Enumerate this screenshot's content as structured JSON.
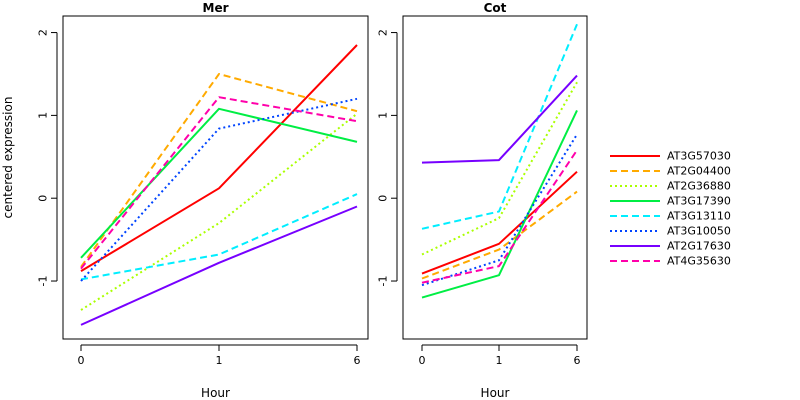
{
  "chart_data": [
    {
      "type": "line",
      "title": "Mer",
      "xlabel": "Hour",
      "ylabel": "centered expression",
      "categories": [
        "0",
        "1",
        "6"
      ],
      "ylim": [
        -1.7,
        2.2
      ],
      "yticks": [
        "-1",
        "0",
        "1",
        "2"
      ],
      "yticks_values": [
        -1,
        0,
        1,
        2
      ],
      "grid": false,
      "series": [
        {
          "name": "AT3G57030",
          "color": "#ff0000",
          "dash": "solid",
          "values": [
            -0.88,
            0.12,
            1.85
          ]
        },
        {
          "name": "AT2G04400",
          "color": "#ffaa00",
          "dash": "dashed",
          "values": [
            -0.83,
            1.5,
            1.05
          ]
        },
        {
          "name": "AT2G36880",
          "color": "#aaff00",
          "dash": "dotted",
          "values": [
            -1.35,
            -0.3,
            1.02
          ]
        },
        {
          "name": "AT3G17390",
          "color": "#00ee44",
          "dash": "solid",
          "values": [
            -0.72,
            1.08,
            0.68
          ]
        },
        {
          "name": "AT3G13110",
          "color": "#00eeff",
          "dash": "dashed",
          "values": [
            -0.98,
            -0.68,
            0.05
          ]
        },
        {
          "name": "AT3G10050",
          "color": "#0044ff",
          "dash": "dotted",
          "values": [
            -1.0,
            0.84,
            1.2
          ]
        },
        {
          "name": "AT2G17630",
          "color": "#7700ff",
          "dash": "solid",
          "values": [
            -1.53,
            -0.78,
            -0.1
          ]
        },
        {
          "name": "AT4G35630",
          "color": "#ff00aa",
          "dash": "dashed",
          "values": [
            -0.85,
            1.22,
            0.93
          ]
        }
      ]
    },
    {
      "type": "line",
      "title": "Cot",
      "xlabel": "Hour",
      "ylabel": "",
      "categories": [
        "0",
        "1",
        "6"
      ],
      "ylim": [
        -1.7,
        2.2
      ],
      "yticks": [
        "-1",
        "0",
        "1",
        "2"
      ],
      "yticks_values": [
        -1,
        0,
        1,
        2
      ],
      "grid": false,
      "series": [
        {
          "name": "AT3G57030",
          "color": "#ff0000",
          "dash": "solid",
          "values": [
            -0.91,
            -0.55,
            0.32
          ]
        },
        {
          "name": "AT2G04400",
          "color": "#ffaa00",
          "dash": "dashed",
          "values": [
            -0.97,
            -0.62,
            0.08
          ]
        },
        {
          "name": "AT2G36880",
          "color": "#aaff00",
          "dash": "dotted",
          "values": [
            -0.68,
            -0.24,
            1.4
          ]
        },
        {
          "name": "AT3G17390",
          "color": "#00ee44",
          "dash": "solid",
          "values": [
            -1.2,
            -0.93,
            1.06
          ]
        },
        {
          "name": "AT3G13110",
          "color": "#00eeff",
          "dash": "dashed",
          "values": [
            -0.37,
            -0.16,
            2.1
          ]
        },
        {
          "name": "AT3G10050",
          "color": "#0044ff",
          "dash": "dotted",
          "values": [
            -1.05,
            -0.75,
            0.77
          ]
        },
        {
          "name": "AT2G17630",
          "color": "#7700ff",
          "dash": "solid",
          "values": [
            0.43,
            0.46,
            1.48
          ]
        },
        {
          "name": "AT4G35630",
          "color": "#ff00aa",
          "dash": "dashed",
          "values": [
            -1.02,
            -0.82,
            0.58
          ]
        }
      ]
    }
  ],
  "legend": {
    "placement": "right",
    "entries": [
      {
        "label": "AT3G57030",
        "color": "#ff0000",
        "dash": "solid"
      },
      {
        "label": "AT2G04400",
        "color": "#ffaa00",
        "dash": "dashed"
      },
      {
        "label": "AT2G36880",
        "color": "#aaff00",
        "dash": "dotted"
      },
      {
        "label": "AT3G17390",
        "color": "#00ee44",
        "dash": "solid"
      },
      {
        "label": "AT3G13110",
        "color": "#00eeff",
        "dash": "dashed"
      },
      {
        "label": "AT3G10050",
        "color": "#0044ff",
        "dash": "dotted"
      },
      {
        "label": "AT2G17630",
        "color": "#7700ff",
        "dash": "solid"
      },
      {
        "label": "AT4G35630",
        "color": "#ff00aa",
        "dash": "dashed"
      }
    ]
  }
}
